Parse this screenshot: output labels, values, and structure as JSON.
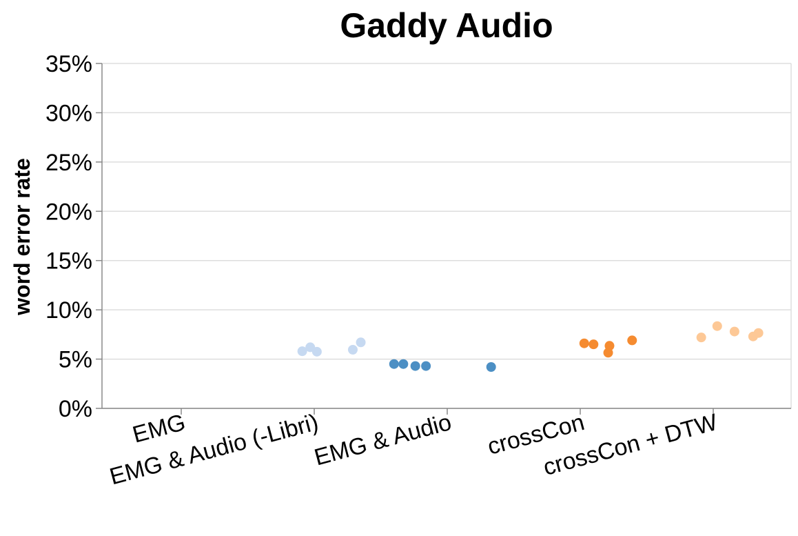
{
  "chart_data": {
    "type": "scatter",
    "title": "Gaddy Audio",
    "xlabel": "",
    "ylabel": "word error rate",
    "categories": [
      "EMG",
      "EMG & Audio (-Libri)",
      "EMG & Audio",
      "crossCon",
      "crossCon + DTW"
    ],
    "ylim": [
      0,
      35
    ],
    "yticks": [
      "0%",
      "5%",
      "10%",
      "15%",
      "20%",
      "25%",
      "30%",
      "35%"
    ],
    "grid": true,
    "series": [
      {
        "color": "#c6d9f1",
        "points": [
          {
            "x": 0.91,
            "y": 5.8
          },
          {
            "x": 0.97,
            "y": 6.2
          },
          {
            "x": 1.02,
            "y": 5.75
          },
          {
            "x": 1.29,
            "y": 5.95
          },
          {
            "x": 1.35,
            "y": 6.7
          }
        ]
      },
      {
        "color": "#4c8fc4",
        "points": [
          {
            "x": 1.6,
            "y": 4.5
          },
          {
            "x": 1.67,
            "y": 4.5
          },
          {
            "x": 1.76,
            "y": 4.3
          },
          {
            "x": 1.84,
            "y": 4.3
          },
          {
            "x": 2.33,
            "y": 4.2
          }
        ]
      },
      {
        "color": "#f58b30",
        "points": [
          {
            "x": 3.03,
            "y": 6.6
          },
          {
            "x": 3.1,
            "y": 6.5
          },
          {
            "x": 3.21,
            "y": 5.65
          },
          {
            "x": 3.22,
            "y": 6.35
          },
          {
            "x": 3.39,
            "y": 6.9
          }
        ]
      },
      {
        "color": "#fdc896",
        "points": [
          {
            "x": 3.91,
            "y": 7.2
          },
          {
            "x": 4.03,
            "y": 8.35
          },
          {
            "x": 4.16,
            "y": 7.8
          },
          {
            "x": 4.3,
            "y": 7.3
          },
          {
            "x": 4.34,
            "y": 7.65
          }
        ]
      }
    ]
  }
}
